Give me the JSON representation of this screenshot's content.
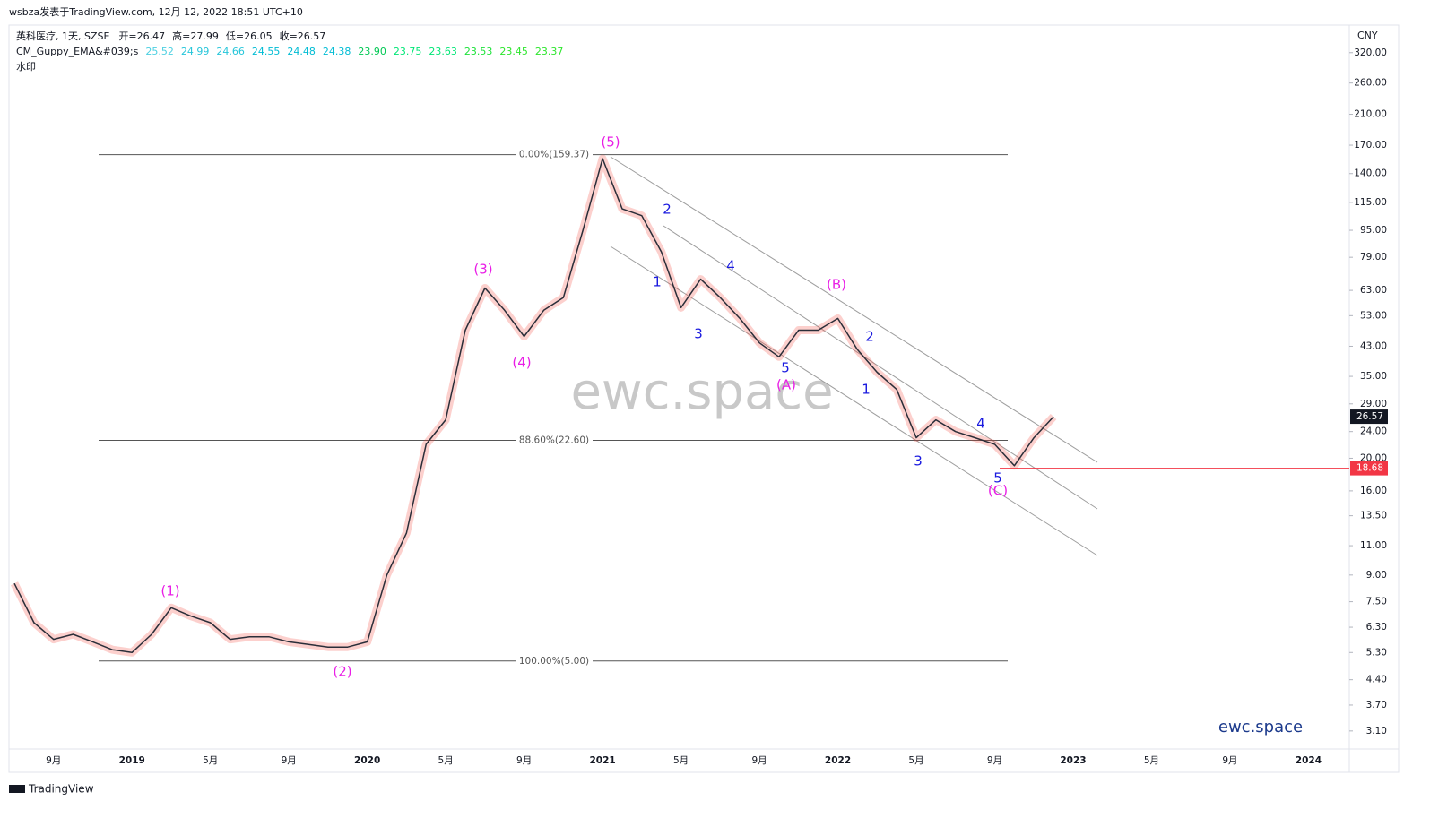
{
  "attribution": "wsbza发表于TradingView.com, 12月 12, 2022 18:51 UTC+10",
  "footer_brand": "TradingView",
  "chart_data": {
    "type": "line",
    "title": "英科医疗, 1天, SZSE",
    "ohlc_legend": [
      "开=26.47",
      "高=27.99",
      "低=26.05",
      "收=26.57"
    ],
    "indicator": {
      "name": "CM_Guppy_EMA&#039;s",
      "values": [
        "25.52",
        "24.99",
        "24.66",
        "24.55",
        "24.48",
        "24.38",
        "23.90",
        "23.75",
        "23.63",
        "23.53",
        "23.45",
        "23.37"
      ],
      "colors": [
        "#4dd0e1",
        "#26c6da",
        "#26c6da",
        "#00bcd4",
        "#00bcd4",
        "#00bcd4",
        "#00c853",
        "#00e676",
        "#00e676",
        "#1de23a",
        "#2ee62e",
        "#2ee62e"
      ]
    },
    "watermark_label": "水印",
    "currency": "CNY",
    "watermark": "ewc.space",
    "brand": "ewc.space",
    "log_scale": true,
    "color": "#2a2e39",
    "x": [
      null,
      null,
      "9月",
      null,
      null,
      null,
      "2019",
      null,
      null,
      null,
      "5月",
      null,
      null,
      null,
      "9月",
      null,
      null,
      null,
      "2020",
      null,
      null,
      null,
      "5月",
      null,
      null,
      null,
      "9月",
      null,
      null,
      null,
      "2021",
      null,
      null,
      null,
      "5月",
      null,
      null,
      null,
      "9月",
      null,
      null,
      null,
      "2022",
      null,
      null,
      null,
      "5月",
      null,
      null,
      null,
      "9月",
      null,
      null,
      null,
      "2023",
      null,
      null,
      null,
      "5月",
      null,
      null,
      null,
      "9月",
      null,
      null,
      null,
      "2024",
      null
    ],
    "values": [
      8.5,
      6.5,
      5.8,
      6.0,
      5.7,
      5.4,
      5.3,
      6.0,
      7.2,
      6.8,
      6.5,
      5.8,
      5.9,
      5.9,
      5.7,
      5.6,
      5.5,
      5.5,
      5.7,
      9.0,
      12,
      22,
      26,
      48,
      64,
      55,
      46,
      55,
      60,
      95,
      155,
      110,
      105,
      82,
      56,
      68,
      60,
      52,
      44,
      40,
      48,
      48,
      52,
      42,
      36,
      32,
      23,
      26,
      24,
      23,
      22,
      19,
      23,
      26.57,
      null,
      null,
      null,
      null,
      null,
      null,
      null,
      null,
      null,
      null,
      null,
      null,
      null,
      null
    ],
    "ylim": [
      2.74,
      377
    ],
    "yticks": [
      {
        "value": 3.1,
        "label": "3.10"
      },
      {
        "value": 3.7,
        "label": "3.70"
      },
      {
        "value": 4.4,
        "label": "4.40"
      },
      {
        "value": 5.3,
        "label": "5.30"
      },
      {
        "value": 6.3,
        "label": "6.30"
      },
      {
        "value": 7.5,
        "label": "7.50"
      },
      {
        "value": 9,
        "label": "9.00"
      },
      {
        "value": 11,
        "label": "11.00"
      },
      {
        "value": 13.5,
        "label": "13.50"
      },
      {
        "value": 16,
        "label": "16.00"
      },
      {
        "value": 20,
        "label": "20.00"
      },
      {
        "value": 24,
        "label": "24.00"
      },
      {
        "value": 29,
        "label": "29.00"
      },
      {
        "value": 35,
        "label": "35.00"
      },
      {
        "value": 43,
        "label": "43.00"
      },
      {
        "value": 53,
        "label": "53.00"
      },
      {
        "value": 63,
        "label": "63.00"
      },
      {
        "value": 79,
        "label": "79.00"
      },
      {
        "value": 95,
        "label": "95.00"
      },
      {
        "value": 115,
        "label": "115.00"
      },
      {
        "value": 140,
        "label": "140.00"
      },
      {
        "value": 170,
        "label": "170.00"
      },
      {
        "value": 210,
        "label": "210.00"
      },
      {
        "value": 260,
        "label": "260.00"
      },
      {
        "value": 320,
        "label": "320.00"
      }
    ],
    "levels": [
      {
        "label": "0.00%(159.37)",
        "value": 159.37
      },
      {
        "label": "88.60%(22.60)",
        "value": 22.6
      },
      {
        "label": "100.00%(5.00)",
        "value": 5.0
      }
    ],
    "price_lines": [
      {
        "value": 18.68,
        "color": "#f23645"
      },
      {
        "value": 26.57,
        "color": "#131722"
      }
    ],
    "annotations": [
      {
        "text": "(1)",
        "color": "#e91ee6"
      },
      {
        "text": "(2)",
        "color": "#e91ee6"
      },
      {
        "text": "(3)",
        "color": "#e91ee6"
      },
      {
        "text": "(4)",
        "color": "#e91ee6"
      },
      {
        "text": "(5)",
        "color": "#e91ee6"
      },
      {
        "text": "(A)",
        "color": "#e91ee6"
      },
      {
        "text": "(B)",
        "color": "#e91ee6"
      },
      {
        "text": "(C)",
        "color": "#e91ee6"
      },
      {
        "text": "2",
        "color": "#1a1adf"
      },
      {
        "text": "1",
        "color": "#1a1adf"
      },
      {
        "text": "4",
        "color": "#1a1adf"
      },
      {
        "text": "3",
        "color": "#1a1adf"
      },
      {
        "text": "5",
        "color": "#1a1adf"
      },
      {
        "text": "2",
        "color": "#1a1adf"
      },
      {
        "text": "1",
        "color": "#1a1adf"
      },
      {
        "text": "4",
        "color": "#1a1adf"
      },
      {
        "text": "3",
        "color": "#1a1adf"
      },
      {
        "text": "5",
        "color": "#1a1adf"
      }
    ]
  }
}
